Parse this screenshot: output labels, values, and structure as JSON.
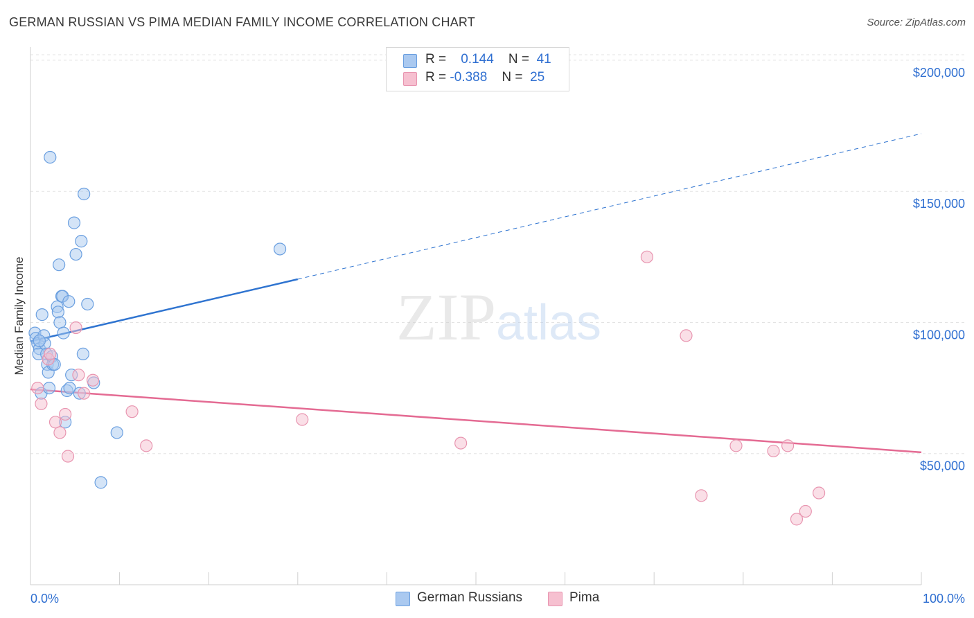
{
  "header": {
    "title": "GERMAN RUSSIAN VS PIMA MEDIAN FAMILY INCOME CORRELATION CHART",
    "source": "Source: ZipAtlas.com"
  },
  "legend_top": {
    "rows": [
      {
        "r_label": "R =",
        "r_value": "0.144",
        "n_label": "N =",
        "n_value": "41"
      },
      {
        "r_label": "R =",
        "r_value": "-0.388",
        "n_label": "N =",
        "n_value": "25"
      }
    ]
  },
  "legend_bottom": {
    "items": [
      {
        "label": "German Russians"
      },
      {
        "label": "Pima"
      }
    ]
  },
  "colors": {
    "blue_fill": "#aac9f0",
    "blue_stroke": "#6a9fe0",
    "blue_line": "#2f74d0",
    "pink_fill": "#f6c0d0",
    "pink_stroke": "#e895b0",
    "pink_line": "#e46b93",
    "axis_label": "#2f6fd1",
    "grid": "#e3e3e3"
  },
  "chart_data": {
    "type": "scatter",
    "title": "GERMAN RUSSIAN VS PIMA MEDIAN FAMILY INCOME CORRELATION CHART",
    "xlabel": "",
    "ylabel": "Median Family Income",
    "xlim": [
      0,
      100
    ],
    "ylim": [
      0,
      205000
    ],
    "x_tick_labels": [
      {
        "value": 0,
        "label": "0.0%"
      },
      {
        "value": 100,
        "label": "100.0%"
      }
    ],
    "y_ticks": [
      {
        "value": 50000,
        "label": "$50,000"
      },
      {
        "value": 100000,
        "label": "$100,000"
      },
      {
        "value": 150000,
        "label": "$150,000"
      },
      {
        "value": 200000,
        "label": "$200,000"
      }
    ],
    "grid": true,
    "watermark": "ZIPatlas",
    "series": [
      {
        "name": "German Russians",
        "color": "blue",
        "points": [
          [
            0.5,
            96000
          ],
          [
            0.6,
            94000
          ],
          [
            0.8,
            92000
          ],
          [
            1.0,
            90000
          ],
          [
            0.9,
            88000
          ],
          [
            1.2,
            73000
          ],
          [
            1.3,
            103000
          ],
          [
            1.5,
            95000
          ],
          [
            1.6,
            92000
          ],
          [
            1.8,
            88000
          ],
          [
            1.9,
            84000
          ],
          [
            2.0,
            81000
          ],
          [
            2.1,
            75000
          ],
          [
            2.2,
            163000
          ],
          [
            2.4,
            87000
          ],
          [
            2.5,
            84000
          ],
          [
            2.7,
            84000
          ],
          [
            3.0,
            106000
          ],
          [
            3.1,
            104000
          ],
          [
            3.2,
            122000
          ],
          [
            3.3,
            100000
          ],
          [
            3.5,
            110000
          ],
          [
            3.6,
            110000
          ],
          [
            3.7,
            96000
          ],
          [
            3.9,
            62000
          ],
          [
            4.1,
            74000
          ],
          [
            4.3,
            108000
          ],
          [
            4.4,
            75000
          ],
          [
            4.6,
            80000
          ],
          [
            4.9,
            138000
          ],
          [
            5.1,
            126000
          ],
          [
            5.5,
            73000
          ],
          [
            5.9,
            88000
          ],
          [
            5.7,
            131000
          ],
          [
            6.0,
            149000
          ],
          [
            6.4,
            107000
          ],
          [
            7.1,
            77000
          ],
          [
            7.9,
            39000
          ],
          [
            9.7,
            58000
          ],
          [
            28.0,
            128000
          ],
          [
            1.0,
            93000
          ]
        ],
        "trend": {
          "x0": 0,
          "y0": 92800,
          "x1": 30,
          "y1": 116500,
          "dash_to_x": 100,
          "dash_to_y": 172000
        }
      },
      {
        "name": "Pima",
        "color": "pink",
        "points": [
          [
            0.8,
            75000
          ],
          [
            1.2,
            69000
          ],
          [
            2.0,
            86000
          ],
          [
            2.2,
            88000
          ],
          [
            2.8,
            62000
          ],
          [
            3.3,
            58000
          ],
          [
            3.9,
            65000
          ],
          [
            4.2,
            49000
          ],
          [
            5.1,
            98000
          ],
          [
            5.4,
            80000
          ],
          [
            6.0,
            73000
          ],
          [
            7.0,
            78000
          ],
          [
            11.4,
            66000
          ],
          [
            13.0,
            53000
          ],
          [
            30.5,
            63000
          ],
          [
            48.3,
            54000
          ],
          [
            69.2,
            125000
          ],
          [
            73.6,
            95000
          ],
          [
            75.3,
            34000
          ],
          [
            79.2,
            53000
          ],
          [
            83.4,
            51000
          ],
          [
            85.0,
            53000
          ],
          [
            86.0,
            25000
          ],
          [
            87.0,
            28000
          ],
          [
            88.5,
            35000
          ]
        ],
        "trend": {
          "x0": 0,
          "y0": 74500,
          "x1": 100,
          "y1": 50500
        }
      }
    ]
  }
}
